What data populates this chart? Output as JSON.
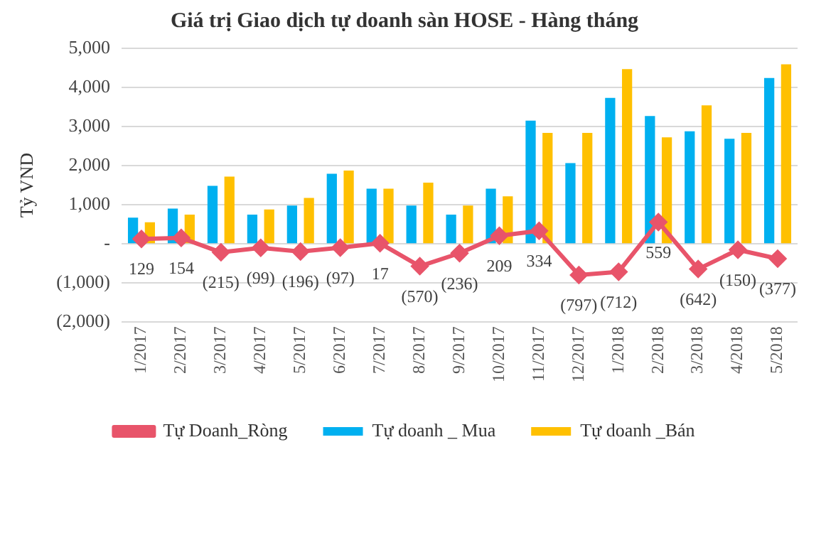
{
  "chart_data": {
    "type": "bar",
    "title": "Giá trị Giao dịch tự doanh sàn HOSE - Hàng tháng",
    "ylabel": "Tỷ VND",
    "categories": [
      "1/2017",
      "2/2017",
      "3/2017",
      "4/2017",
      "5/2017",
      "6/2017",
      "7/2017",
      "8/2017",
      "9/2017",
      "10/2017",
      "11/2017",
      "12/2017",
      "1/2018",
      "2/2018",
      "3/2018",
      "4/2018",
      "5/2018"
    ],
    "series": [
      {
        "name": "Tự doanh _ Mua",
        "color": "#00b0f0",
        "values": [
          670,
          905,
          1485,
          750,
          980,
          1795,
          1410,
          980,
          750,
          1410,
          3150,
          2065,
          3735,
          3270,
          2880,
          2690,
          4240
        ]
      },
      {
        "name": "Tự doanh _Bán",
        "color": "#ffc000",
        "values": [
          555,
          750,
          1720,
          880,
          1175,
          1875,
          1410,
          1565,
          980,
          1215,
          2840,
          2840,
          4470,
          2725,
          3540,
          2840,
          4590
        ]
      },
      {
        "name": "Tự Doanh_Ròng",
        "type": "line",
        "color": "#e8546a",
        "marker": "diamond",
        "values": [
          129,
          154,
          -215,
          -99,
          -196,
          -97,
          17,
          -570,
          -236,
          209,
          334,
          -797,
          -712,
          559,
          -642,
          -150,
          -377
        ],
        "value_labels": [
          "129",
          "154",
          "(215)",
          "(99)",
          "(196)",
          "(97)",
          "17",
          "(570)",
          "(236)",
          "209",
          "334",
          "(797)",
          "(712)",
          "559",
          "(642)",
          "(150)",
          "(377)"
        ]
      }
    ],
    "ylim": [
      -2000,
      5000
    ],
    "yticks": [
      {
        "value": -2000,
        "label": "(2,000)"
      },
      {
        "value": -1000,
        "label": "(1,000)"
      },
      {
        "value": 0,
        "label": "-"
      },
      {
        "value": 1000,
        "label": "1,000"
      },
      {
        "value": 2000,
        "label": "2,000"
      },
      {
        "value": 3000,
        "label": "3,000"
      },
      {
        "value": 4000,
        "label": "4,000"
      },
      {
        "value": 5000,
        "label": "5,000"
      }
    ],
    "grid": "y",
    "legend": "bottom"
  }
}
